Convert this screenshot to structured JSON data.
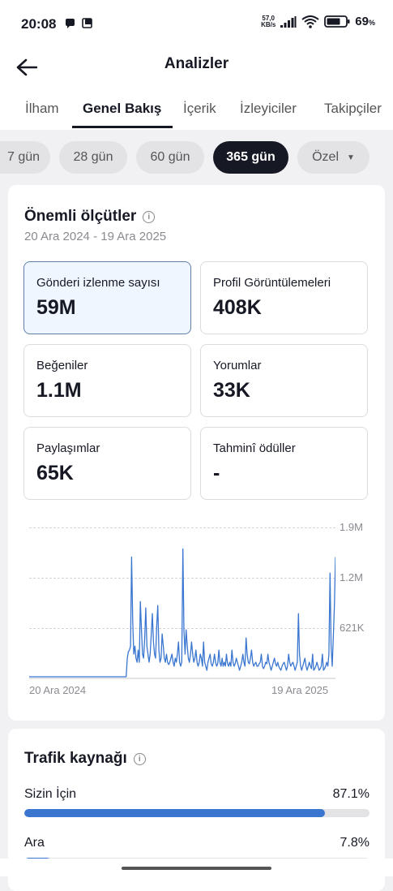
{
  "status": {
    "time": "20:08",
    "net_top": "57,0",
    "net_bottom": "KB/s",
    "battery": "69",
    "battery_unit": "%"
  },
  "header": {
    "title": "Analizler"
  },
  "tabs": [
    {
      "label": "İlham"
    },
    {
      "label": "Genel Bakış"
    },
    {
      "label": "İçerik"
    },
    {
      "label": "İzleyiciler"
    },
    {
      "label": "Takipçiler"
    }
  ],
  "active_tab": "Genel Bakış",
  "ranges": [
    {
      "label": "7 gün"
    },
    {
      "label": "28 gün"
    },
    {
      "label": "60 gün"
    },
    {
      "label": "365 gün"
    },
    {
      "label": "Özel"
    }
  ],
  "active_range": "365 gün",
  "key_metrics": {
    "title": "Önemli ölçütler",
    "date_range": "20 Ara 2024 - 19 Ara 2025",
    "tiles": [
      {
        "label": "Gönderi izlenme sayısı",
        "value": "59M"
      },
      {
        "label": "Profil Görüntülemeleri",
        "value": "408K"
      },
      {
        "label": "Beğeniler",
        "value": "1.1M"
      },
      {
        "label": "Yorumlar",
        "value": "33K"
      },
      {
        "label": "Paylaşımlar",
        "value": "65K"
      },
      {
        "label": "Tahminî ödüller",
        "value": "-"
      }
    ],
    "selected_tile": "Gönderi izlenme sayısı"
  },
  "chart_data": {
    "type": "line",
    "x_start_label": "20 Ara 2024",
    "x_end_label": "19 Ara 2025",
    "y_tick_labels": [
      "1.9M",
      "1.2M",
      "621K"
    ],
    "y_ticks": [
      1865000,
      1243000,
      621000
    ],
    "ylim": [
      0,
      1865000
    ],
    "grid": true,
    "line_color": "#3a76d0",
    "series": [
      {
        "values": [
          20000,
          20000,
          20000,
          20000,
          20000,
          20000,
          20000,
          20000,
          20000,
          20000,
          20000,
          20000,
          20000,
          20000,
          20000,
          20000,
          20000,
          20000,
          20000,
          20000,
          20000,
          20000,
          20000,
          20000,
          20000,
          20000,
          20000,
          20000,
          20000,
          20000,
          20000,
          20000,
          20000,
          20000,
          20000,
          20000,
          20000,
          20000,
          20000,
          20000,
          20000,
          20000,
          20000,
          20000,
          20000,
          20000,
          20000,
          20000,
          20000,
          20000,
          20000,
          20000,
          20000,
          20000,
          20000,
          20000,
          20000,
          20000,
          20000,
          20000,
          20000,
          20000,
          20000,
          20000,
          20000,
          20000,
          20000,
          20000,
          20000,
          20000,
          20000,
          20000,
          20000,
          20000,
          20000,
          20000,
          20000,
          20000,
          20000,
          20000,
          20000,
          20000,
          20000,
          20000,
          20000,
          20000,
          20000,
          20000,
          20000,
          20000,
          250000,
          330000,
          350000,
          400000,
          1500000,
          700000,
          300000,
          400000,
          250000,
          200000,
          350000,
          200000,
          950000,
          600000,
          300000,
          250000,
          500000,
          870000,
          400000,
          300000,
          200000,
          300000,
          550000,
          800000,
          450000,
          300000,
          250000,
          650000,
          900000,
          350000,
          200000,
          250000,
          550000,
          400000,
          250000,
          200000,
          300000,
          200000,
          170000,
          200000,
          250000,
          300000,
          200000,
          150000,
          250000,
          200000,
          300000,
          450000,
          200000,
          150000,
          200000,
          1600000,
          600000,
          300000,
          600000,
          400000,
          250000,
          200000,
          300000,
          450000,
          300000,
          200000,
          250000,
          350000,
          200000,
          150000,
          200000,
          300000,
          250000,
          150000,
          450000,
          200000,
          150000,
          100000,
          200000,
          250000,
          300000,
          180000,
          150000,
          200000,
          300000,
          200000,
          150000,
          180000,
          350000,
          200000,
          150000,
          250000,
          150000,
          200000,
          150000,
          300000,
          180000,
          150000,
          200000,
          150000,
          350000,
          200000,
          150000,
          180000,
          250000,
          200000,
          150000,
          100000,
          150000,
          200000,
          300000,
          200000,
          150000,
          500000,
          300000,
          200000,
          180000,
          250000,
          350000,
          200000,
          150000,
          180000,
          200000,
          150000,
          150000,
          180000,
          200000,
          300000,
          150000,
          120000,
          150000,
          200000,
          180000,
          300000,
          200000,
          150000,
          100000,
          150000,
          200000,
          250000,
          180000,
          150000,
          200000,
          150000,
          120000,
          100000,
          150000,
          180000,
          200000,
          150000,
          100000,
          150000,
          300000,
          200000,
          150000,
          180000,
          200000,
          150000,
          100000,
          150000,
          200000,
          800000,
          300000,
          150000,
          100000,
          150000,
          200000,
          250000,
          150000,
          100000,
          150000,
          200000,
          150000,
          120000,
          300000,
          100000,
          120000,
          150000,
          200000,
          150000,
          100000,
          120000,
          150000,
          300000,
          100000,
          120000,
          150000,
          200000,
          150000,
          300000,
          1300000,
          400000,
          150000,
          500000,
          900000,
          1500000
        ]
      }
    ]
  },
  "traffic": {
    "title": "Trafik kaynağı",
    "sources": [
      {
        "name": "Sizin İçin",
        "percent_label": "87.1%",
        "percent": 87.1
      },
      {
        "name": "Ara",
        "percent_label": "7.8%",
        "percent": 7.8
      }
    ]
  },
  "colors": {
    "accent": "#3a76d0",
    "selected_tile_bg": "#f0f6ff",
    "active_chip": "#161823"
  }
}
